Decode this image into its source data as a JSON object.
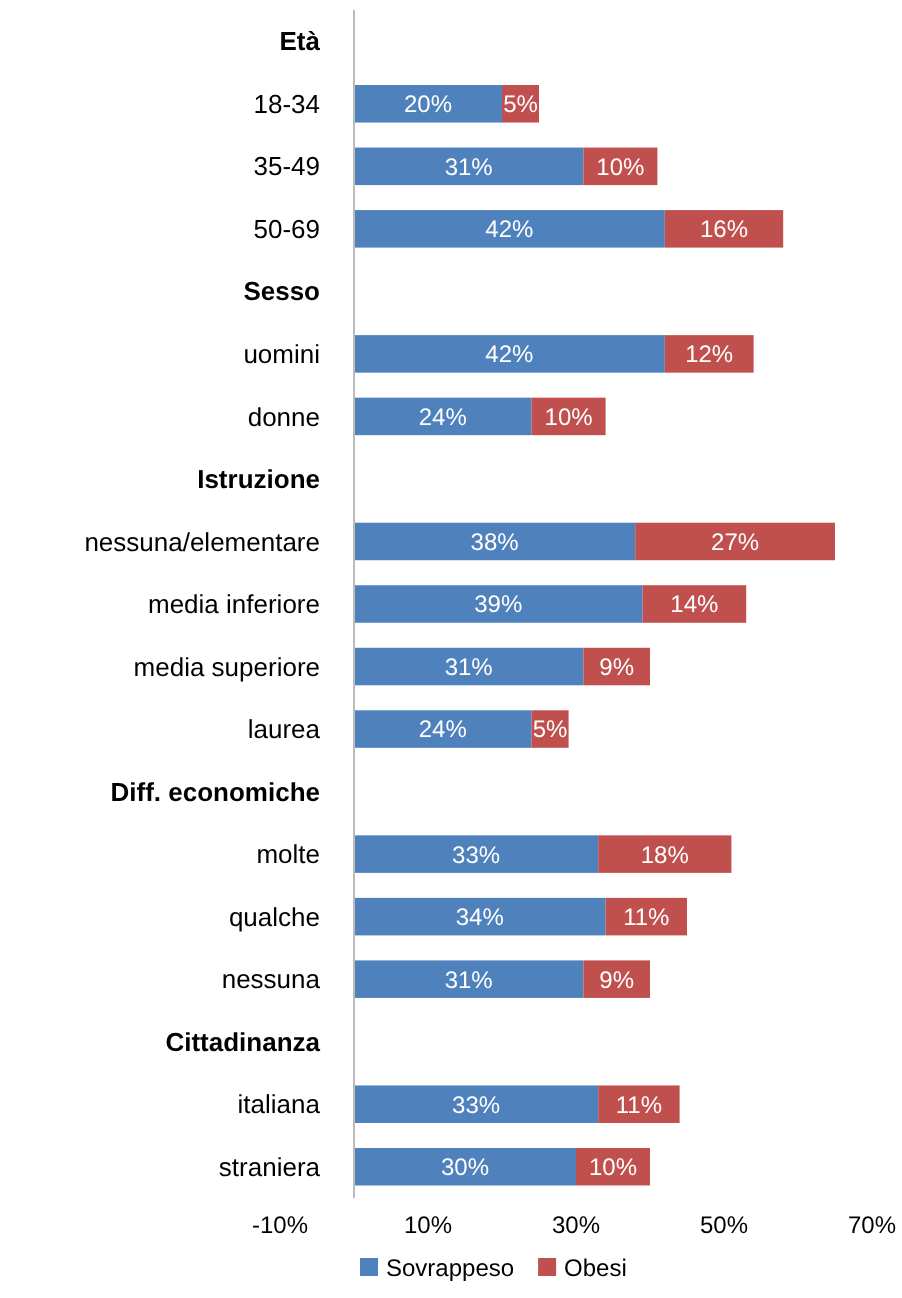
{
  "chart_data": {
    "type": "bar",
    "orientation": "horizontal",
    "stacked": true,
    "legend": "bottom",
    "grid": false,
    "categories": [
      "Età",
      "18-34",
      "35-49",
      "50-69",
      "Sesso",
      "uomini",
      "donne",
      "Istruzione",
      "nessuna/elementare",
      "media inferiore",
      "media superiore",
      "laurea",
      "Diff. economiche",
      "molte",
      "qualche",
      "nessuna",
      "Cittadinanza",
      "italiana",
      "straniera"
    ],
    "series": [
      {
        "name": "Sovrappeso",
        "color": "#4f81bd",
        "values": [
          null,
          20,
          31,
          42,
          null,
          42,
          24,
          null,
          38,
          39,
          31,
          24,
          null,
          33,
          34,
          31,
          null,
          33,
          30
        ],
        "value_labels": [
          null,
          "20%",
          "31%",
          "42%",
          null,
          "42%",
          "24%",
          null,
          "38%",
          "39%",
          "31%",
          "24%",
          null,
          "33%",
          "34%",
          "31%",
          null,
          "33%",
          "30%"
        ]
      },
      {
        "name": "Obesi",
        "color": "#c0504d",
        "values": [
          null,
          5,
          10,
          16,
          null,
          12,
          10,
          null,
          27,
          14,
          9,
          5,
          null,
          18,
          11,
          9,
          null,
          11,
          10
        ],
        "value_labels": [
          null,
          "5%",
          "10%",
          "16%",
          null,
          "12%",
          "10%",
          null,
          "27%",
          "14%",
          "9%",
          "5%",
          null,
          "18%",
          "11%",
          "9%",
          null,
          "11%",
          "10%"
        ]
      }
    ],
    "xlim": [
      -10,
      70
    ],
    "xticks": [
      {
        "value": -10,
        "label": "-10%"
      },
      {
        "value": 10,
        "label": "10%"
      },
      {
        "value": 30,
        "label": "30%"
      },
      {
        "value": 50,
        "label": "50%"
      },
      {
        "value": 70,
        "label": "70%"
      }
    ]
  }
}
